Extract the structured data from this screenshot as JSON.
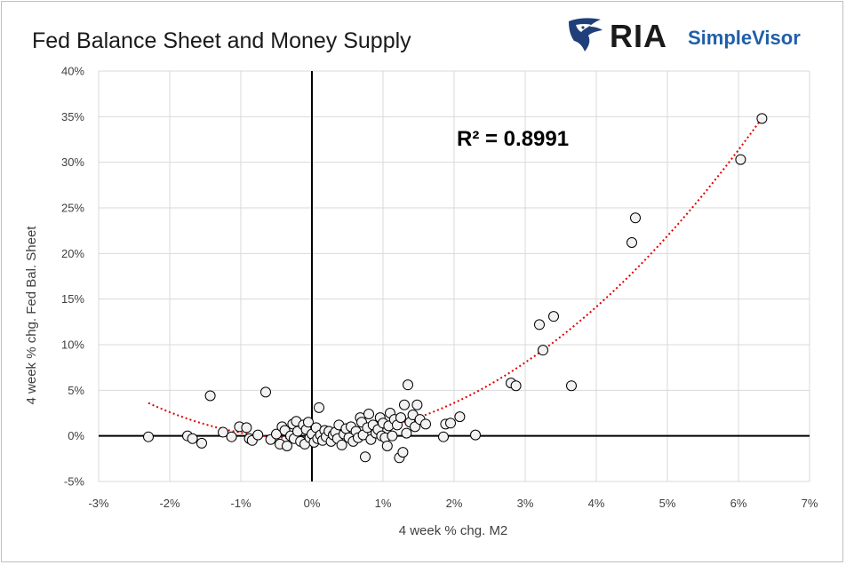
{
  "chart_data": {
    "type": "scatter",
    "title": "Fed Balance Sheet and Money Supply",
    "xlabel": "4 week % chg. M2",
    "ylabel": "4 week % chg. Fed Bal. Sheet",
    "xlim": [
      -3,
      7
    ],
    "ylim": [
      -5,
      40
    ],
    "x_ticks": [
      "-3%",
      "-2%",
      "-1%",
      "0%",
      "1%",
      "2%",
      "3%",
      "4%",
      "5%",
      "6%",
      "7%"
    ],
    "y_ticks": [
      "-5%",
      "0%",
      "5%",
      "10%",
      "15%",
      "20%",
      "25%",
      "30%",
      "35%",
      "40%"
    ],
    "grid": true,
    "annotation": "R² = 0.8991",
    "trendline": {
      "type": "polynomial",
      "style": "dotted",
      "color": "#e00000",
      "x_range": [
        -2.3,
        6.35
      ]
    },
    "marker_fill": "#f2f2f2",
    "marker_edge": "#000000",
    "points": [
      [
        -2.3,
        -0.1
      ],
      [
        -1.75,
        0.0
      ],
      [
        -1.68,
        -0.3
      ],
      [
        -1.55,
        -0.8
      ],
      [
        -1.43,
        4.4
      ],
      [
        -1.25,
        0.4
      ],
      [
        -1.13,
        -0.1
      ],
      [
        -1.02,
        1.0
      ],
      [
        -0.92,
        0.9
      ],
      [
        -0.88,
        -0.3
      ],
      [
        -0.84,
        -0.5
      ],
      [
        -0.76,
        0.1
      ],
      [
        -0.65,
        4.8
      ],
      [
        -0.58,
        -0.4
      ],
      [
        -0.5,
        0.2
      ],
      [
        -0.45,
        -0.9
      ],
      [
        -0.42,
        1.0
      ],
      [
        -0.38,
        0.6
      ],
      [
        -0.35,
        -1.1
      ],
      [
        -0.3,
        0.0
      ],
      [
        -0.27,
        1.3
      ],
      [
        -0.25,
        -0.3
      ],
      [
        -0.22,
        1.6
      ],
      [
        -0.2,
        0.5
      ],
      [
        -0.16,
        -0.6
      ],
      [
        -0.12,
        1.2
      ],
      [
        -0.1,
        -0.9
      ],
      [
        -0.08,
        0.7
      ],
      [
        -0.05,
        1.5
      ],
      [
        -0.03,
        -0.2
      ],
      [
        0.0,
        0.2
      ],
      [
        0.03,
        -0.7
      ],
      [
        0.06,
        0.9
      ],
      [
        0.08,
        -0.3
      ],
      [
        0.1,
        3.1
      ],
      [
        0.12,
        0.1
      ],
      [
        0.15,
        -0.5
      ],
      [
        0.18,
        0.6
      ],
      [
        0.2,
        -0.1
      ],
      [
        0.24,
        0.5
      ],
      [
        0.27,
        -0.6
      ],
      [
        0.3,
        0.1
      ],
      [
        0.33,
        0.4
      ],
      [
        0.36,
        -0.3
      ],
      [
        0.38,
        1.2
      ],
      [
        0.42,
        -1.0
      ],
      [
        0.45,
        0.2
      ],
      [
        0.48,
        0.8
      ],
      [
        0.52,
        -0.2
      ],
      [
        0.55,
        1.0
      ],
      [
        0.58,
        -0.6
      ],
      [
        0.62,
        0.5
      ],
      [
        0.65,
        -0.2
      ],
      [
        0.68,
        2.0
      ],
      [
        0.7,
        1.5
      ],
      [
        0.72,
        0.1
      ],
      [
        0.75,
        -2.3
      ],
      [
        0.78,
        0.9
      ],
      [
        0.8,
        2.4
      ],
      [
        0.83,
        -0.4
      ],
      [
        0.86,
        1.2
      ],
      [
        0.9,
        0.3
      ],
      [
        0.93,
        0.7
      ],
      [
        0.96,
        2.0
      ],
      [
        0.98,
        0.0
      ],
      [
        1.0,
        1.4
      ],
      [
        1.03,
        -0.2
      ],
      [
        1.06,
        -1.1
      ],
      [
        1.08,
        1.1
      ],
      [
        1.1,
        2.5
      ],
      [
        1.13,
        0.0
      ],
      [
        1.16,
        1.8
      ],
      [
        1.2,
        1.2
      ],
      [
        1.23,
        -2.4
      ],
      [
        1.25,
        2.0
      ],
      [
        1.28,
        -1.8
      ],
      [
        1.3,
        3.4
      ],
      [
        1.33,
        0.3
      ],
      [
        1.35,
        5.6
      ],
      [
        1.38,
        1.5
      ],
      [
        1.42,
        2.3
      ],
      [
        1.45,
        1.0
      ],
      [
        1.48,
        3.4
      ],
      [
        1.52,
        1.8
      ],
      [
        1.6,
        1.3
      ],
      [
        1.85,
        -0.1
      ],
      [
        1.88,
        1.3
      ],
      [
        1.95,
        1.4
      ],
      [
        2.08,
        2.1
      ],
      [
        2.3,
        0.1
      ],
      [
        2.8,
        5.8
      ],
      [
        2.87,
        5.5
      ],
      [
        3.2,
        12.2
      ],
      [
        3.25,
        9.4
      ],
      [
        3.4,
        13.1
      ],
      [
        3.65,
        5.5
      ],
      [
        4.5,
        21.2
      ],
      [
        4.55,
        23.9
      ],
      [
        6.03,
        30.3
      ],
      [
        6.33,
        34.8
      ]
    ]
  }
}
